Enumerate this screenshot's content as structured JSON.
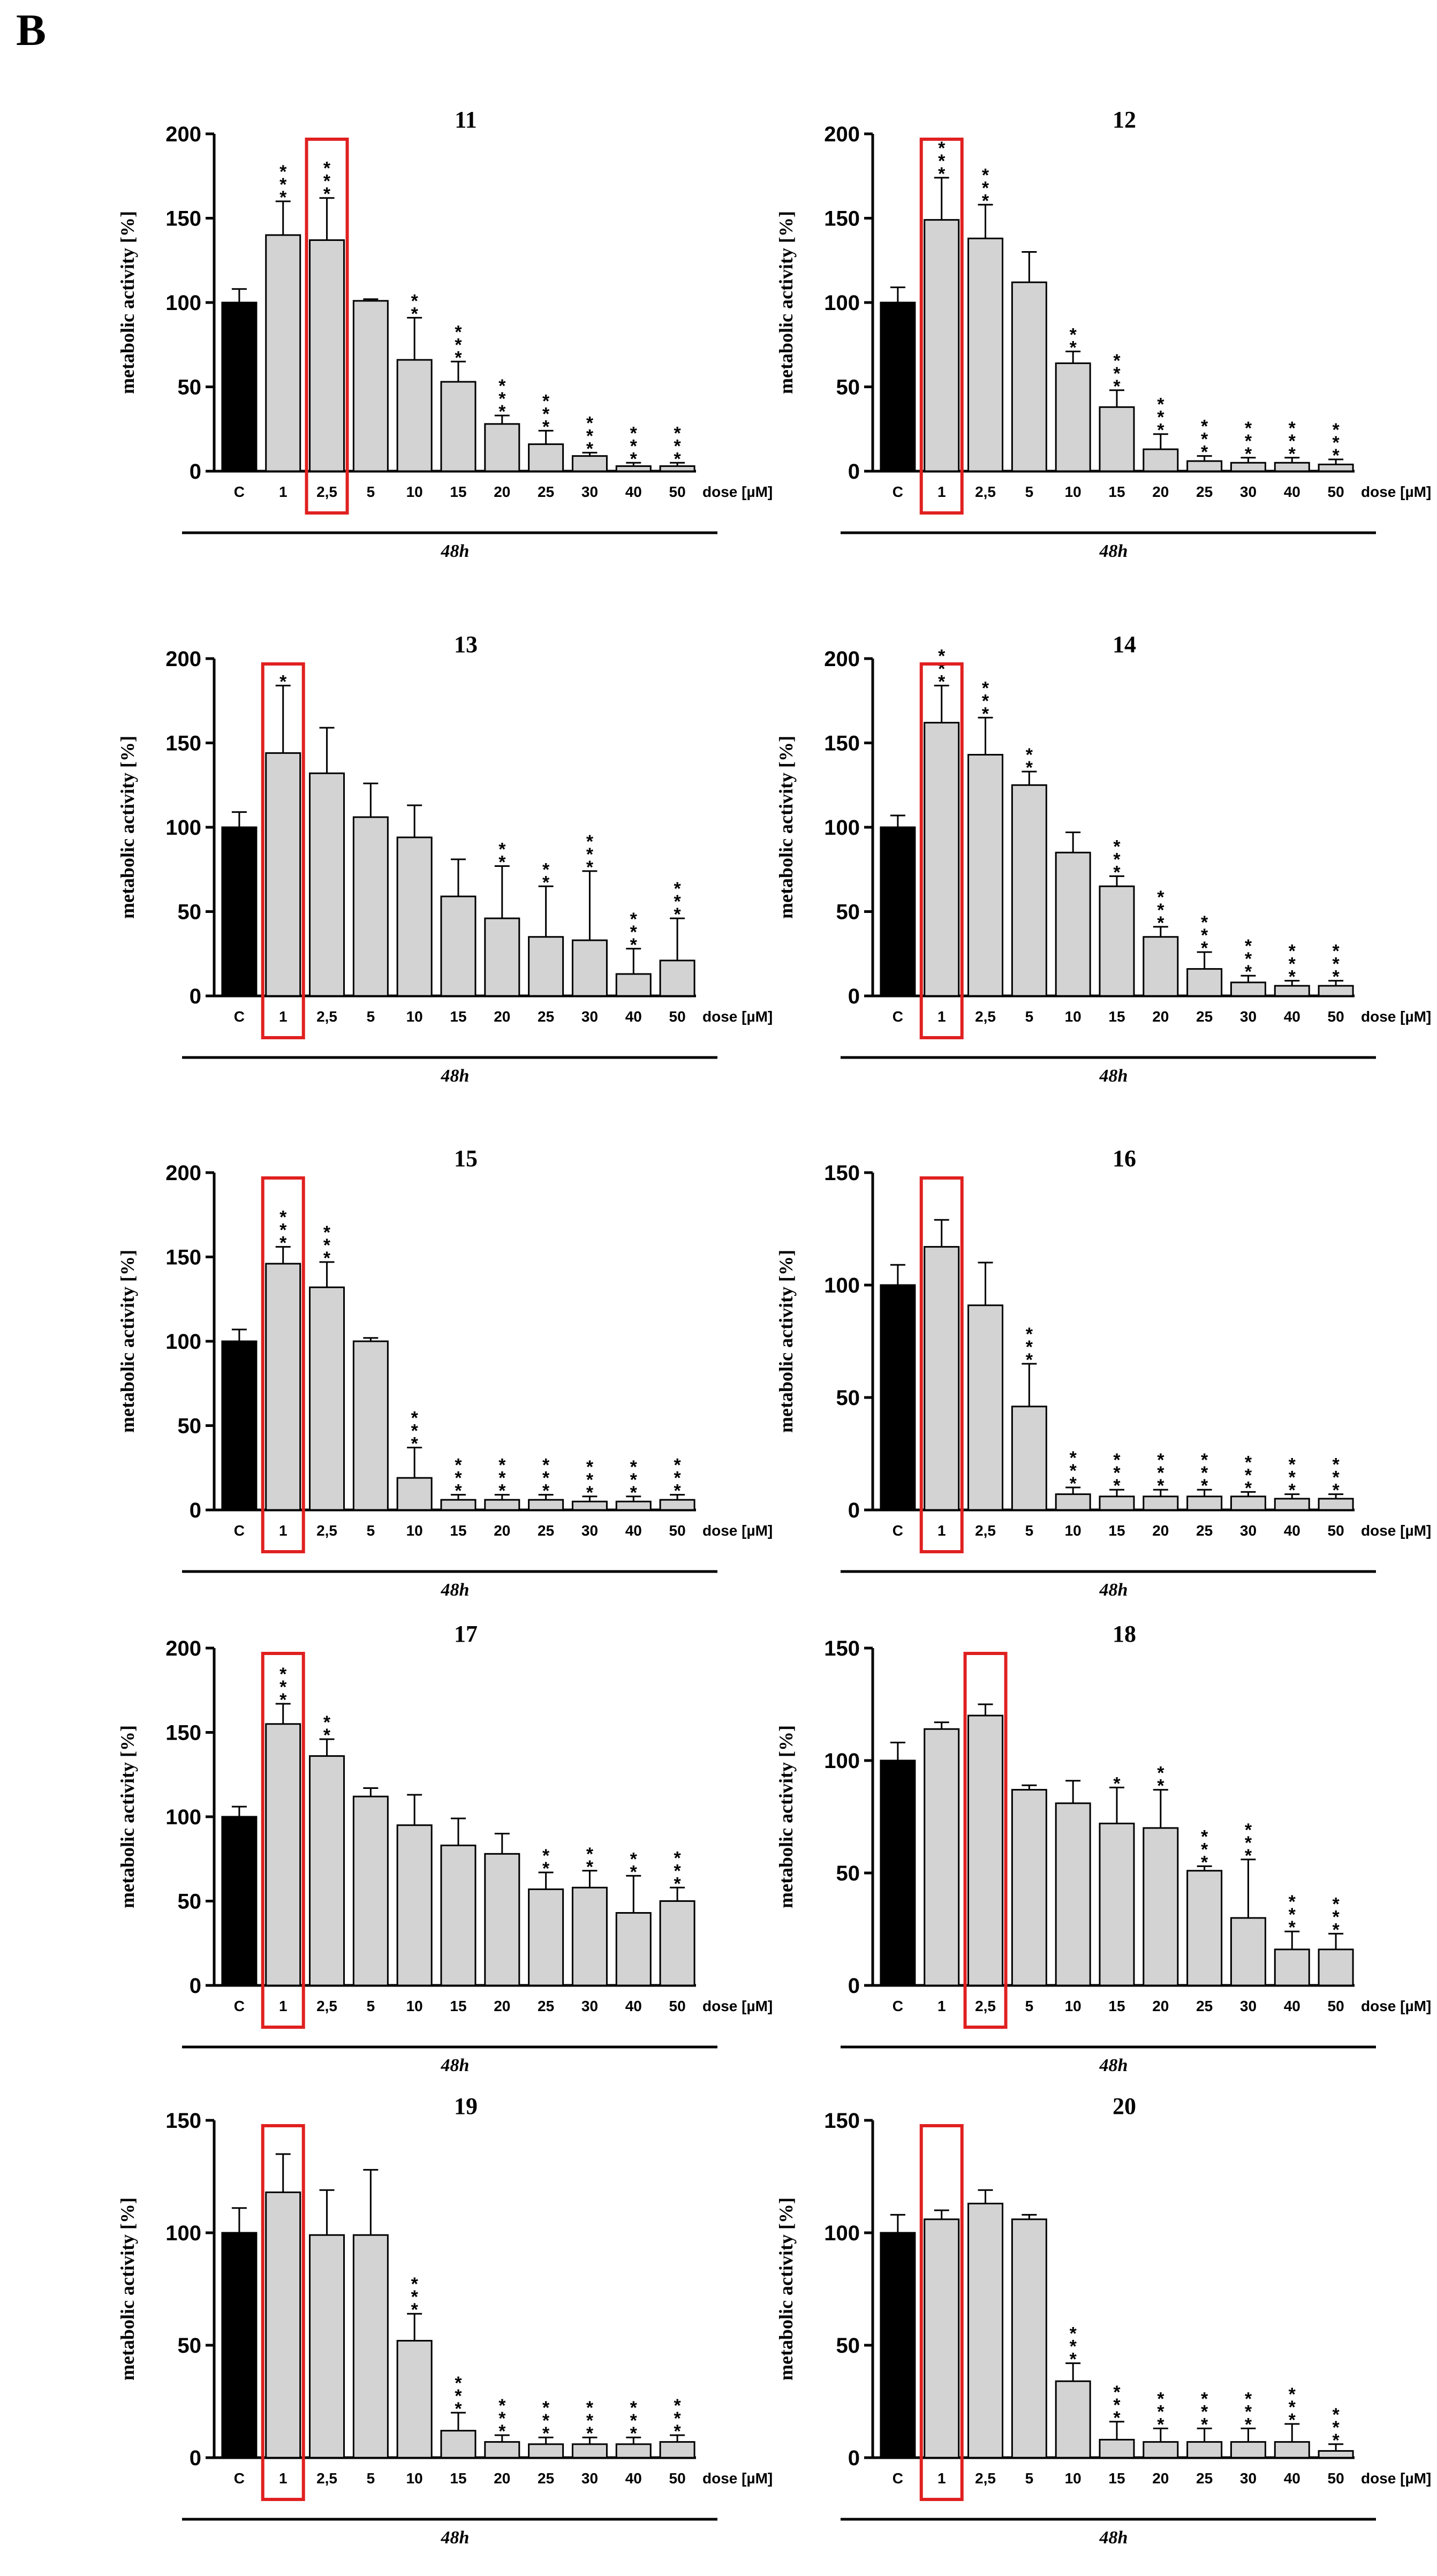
{
  "panel_label": "B",
  "chart_data": [
    {
      "type": "bar",
      "title": "11",
      "ylabel": "metabolic activity [%]",
      "categories": [
        "C",
        "1",
        "2,5",
        "5",
        "10",
        "15",
        "20",
        "25",
        "30",
        "40",
        "50"
      ],
      "xlabel": "dose [µM]",
      "time_label": "48h",
      "ylim": [
        0,
        200
      ],
      "yticks": [
        0,
        50,
        100,
        150,
        200
      ],
      "values": [
        100,
        140,
        137,
        101,
        66,
        53,
        28,
        16,
        9,
        3,
        3
      ],
      "errors": [
        8,
        20,
        25,
        1,
        25,
        12,
        5,
        8,
        2,
        2,
        2
      ],
      "significance": [
        "",
        "***",
        "***",
        "",
        "**",
        "***",
        "***",
        "***",
        "***",
        "***",
        "***"
      ],
      "highlight": "2,5"
    },
    {
      "type": "bar",
      "title": "12",
      "ylabel": "metabolic activity [%]",
      "categories": [
        "C",
        "1",
        "2,5",
        "5",
        "10",
        "15",
        "20",
        "25",
        "30",
        "40",
        "50"
      ],
      "xlabel": "dose [µM]",
      "time_label": "48h",
      "ylim": [
        0,
        200
      ],
      "yticks": [
        0,
        50,
        100,
        150,
        200
      ],
      "values": [
        100,
        149,
        138,
        112,
        64,
        38,
        13,
        6,
        5,
        5,
        4
      ],
      "errors": [
        9,
        25,
        20,
        18,
        7,
        10,
        9,
        3,
        3,
        3,
        3
      ],
      "significance": [
        "",
        "***",
        "***",
        "",
        "**",
        "***",
        "***",
        "***",
        "***",
        "***",
        "***"
      ],
      "highlight": "1"
    },
    {
      "type": "bar",
      "title": "13",
      "ylabel": "metabolic activity [%]",
      "categories": [
        "C",
        "1",
        "2,5",
        "5",
        "10",
        "15",
        "20",
        "25",
        "30",
        "40",
        "50"
      ],
      "xlabel": "dose [µM]",
      "time_label": "48h",
      "ylim": [
        0,
        200
      ],
      "yticks": [
        0,
        50,
        100,
        150,
        200
      ],
      "values": [
        100,
        144,
        132,
        106,
        94,
        59,
        46,
        35,
        33,
        13,
        21
      ],
      "errors": [
        9,
        40,
        27,
        20,
        19,
        22,
        31,
        30,
        41,
        15,
        25
      ],
      "significance": [
        "",
        "*",
        "",
        "",
        "",
        "",
        "**",
        "**",
        "***",
        "***",
        "***"
      ],
      "highlight": "1"
    },
    {
      "type": "bar",
      "title": "14",
      "ylabel": "metabolic activity [%]",
      "categories": [
        "C",
        "1",
        "2,5",
        "5",
        "10",
        "15",
        "20",
        "25",
        "30",
        "40",
        "50"
      ],
      "xlabel": "dose [µM]",
      "time_label": "48h",
      "ylim": [
        0,
        200
      ],
      "yticks": [
        0,
        50,
        100,
        150,
        200
      ],
      "values": [
        100,
        162,
        143,
        125,
        85,
        65,
        35,
        16,
        8,
        6,
        6
      ],
      "errors": [
        7,
        22,
        22,
        8,
        12,
        6,
        6,
        10,
        4,
        3,
        3
      ],
      "significance": [
        "",
        "***",
        "***",
        "**",
        "",
        "***",
        "***",
        "***",
        "***",
        "***",
        "***"
      ],
      "highlight": "1"
    },
    {
      "type": "bar",
      "title": "15",
      "ylabel": "metabolic activity [%]",
      "categories": [
        "C",
        "1",
        "2,5",
        "5",
        "10",
        "15",
        "20",
        "25",
        "30",
        "40",
        "50"
      ],
      "xlabel": "dose [µM]",
      "time_label": "48h",
      "ylim": [
        0,
        200
      ],
      "yticks": [
        0,
        50,
        100,
        150,
        200
      ],
      "values": [
        100,
        146,
        132,
        100,
        19,
        6,
        6,
        6,
        5,
        5,
        6
      ],
      "errors": [
        7,
        10,
        15,
        2,
        18,
        3,
        3,
        3,
        3,
        3,
        3
      ],
      "significance": [
        "",
        "***",
        "***",
        "",
        "***",
        "***",
        "***",
        "***",
        "***",
        "***",
        "***"
      ],
      "highlight": "1"
    },
    {
      "type": "bar",
      "title": "16",
      "ylabel": "metabolic activity [%]",
      "categories": [
        "C",
        "1",
        "2,5",
        "5",
        "10",
        "15",
        "20",
        "25",
        "30",
        "40",
        "50"
      ],
      "xlabel": "dose [µM]",
      "time_label": "48h",
      "ylim": [
        0,
        150
      ],
      "yticks": [
        0,
        50,
        100,
        150
      ],
      "values": [
        100,
        117,
        91,
        46,
        7,
        6,
        6,
        6,
        6,
        5,
        5
      ],
      "errors": [
        9,
        12,
        19,
        19,
        3,
        3,
        3,
        3,
        2,
        2,
        2
      ],
      "significance": [
        "",
        "",
        "",
        "***",
        "***",
        "***",
        "***",
        "***",
        "***",
        "***",
        "***"
      ],
      "highlight": "1"
    },
    {
      "type": "bar",
      "title": "17",
      "ylabel": "metabolic activity [%]",
      "categories": [
        "C",
        "1",
        "2,5",
        "5",
        "10",
        "15",
        "20",
        "25",
        "30",
        "40",
        "50"
      ],
      "xlabel": "dose [µM]",
      "time_label": "48h",
      "ylim": [
        0,
        200
      ],
      "yticks": [
        0,
        50,
        100,
        150,
        200
      ],
      "values": [
        100,
        155,
        136,
        112,
        95,
        83,
        78,
        57,
        58,
        43,
        50
      ],
      "errors": [
        6,
        12,
        10,
        5,
        18,
        16,
        12,
        10,
        10,
        22,
        8
      ],
      "significance": [
        "",
        "***",
        "**",
        "",
        "",
        "",
        "",
        "**",
        "**",
        "**",
        "***"
      ],
      "highlight": "1"
    },
    {
      "type": "bar",
      "title": "18",
      "ylabel": "metabolic activity [%]",
      "categories": [
        "C",
        "1",
        "2,5",
        "5",
        "10",
        "15",
        "20",
        "25",
        "30",
        "40",
        "50"
      ],
      "xlabel": "dose [µM]",
      "time_label": "48h",
      "ylim": [
        0,
        150
      ],
      "yticks": [
        0,
        50,
        100,
        150
      ],
      "values": [
        100,
        114,
        120,
        87,
        81,
        72,
        70,
        51,
        30,
        16,
        16
      ],
      "errors": [
        8,
        3,
        5,
        2,
        10,
        16,
        17,
        2,
        26,
        8,
        7
      ],
      "significance": [
        "",
        "",
        "",
        "",
        "",
        "*",
        "**",
        "***",
        "***",
        "***",
        "***"
      ],
      "highlight": "2,5"
    },
    {
      "type": "bar",
      "title": "19",
      "ylabel": "metabolic activity [%]",
      "categories": [
        "C",
        "1",
        "2,5",
        "5",
        "10",
        "15",
        "20",
        "25",
        "30",
        "40",
        "50"
      ],
      "xlabel": "dose [µM]",
      "time_label": "48h",
      "ylim": [
        0,
        150
      ],
      "yticks": [
        0,
        50,
        100,
        150
      ],
      "values": [
        100,
        118,
        99,
        99,
        52,
        12,
        7,
        6,
        6,
        6,
        7
      ],
      "errors": [
        11,
        17,
        20,
        29,
        12,
        8,
        3,
        3,
        3,
        3,
        3
      ],
      "significance": [
        "",
        "",
        "",
        "",
        "***",
        "***",
        "***",
        "***",
        "***",
        "***",
        "***"
      ],
      "highlight": "1"
    },
    {
      "type": "bar",
      "title": "20",
      "ylabel": "metabolic activity [%]",
      "categories": [
        "C",
        "1",
        "2,5",
        "5",
        "10",
        "15",
        "20",
        "25",
        "30",
        "40",
        "50"
      ],
      "xlabel": "dose [µM]",
      "time_label": "48h",
      "ylim": [
        0,
        150
      ],
      "yticks": [
        0,
        50,
        100,
        150
      ],
      "values": [
        100,
        106,
        113,
        106,
        34,
        8,
        7,
        7,
        7,
        7,
        3
      ],
      "errors": [
        8,
        4,
        6,
        2,
        8,
        8,
        6,
        6,
        6,
        8,
        3
      ],
      "significance": [
        "",
        "",
        "",
        "",
        "***",
        "***",
        "***",
        "***",
        "***",
        "***",
        "***"
      ],
      "highlight": "1"
    }
  ]
}
